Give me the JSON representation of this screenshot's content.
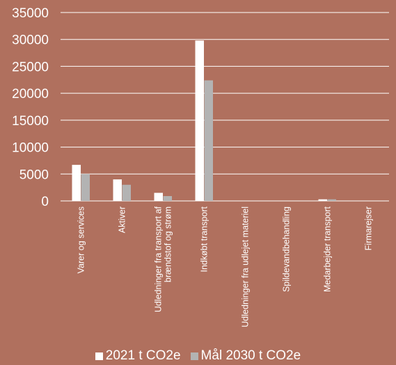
{
  "chart_data": {
    "type": "bar",
    "categories": [
      "Varer og services",
      "Aktiver",
      "Udledninger fra transport af brændstof og strøm",
      "Indkøbt transport",
      "Udledninger fra udlejet materiel",
      "Spildevandbehandling",
      "Medarbejder transport",
      "Firmarejser"
    ],
    "category_lines": [
      [
        "Varer og services"
      ],
      [
        "Aktiver"
      ],
      [
        "Udledninger fra transport af",
        "brændstof og strøm"
      ],
      [
        "Indkøbt transport"
      ],
      [
        "Udledninger fra udlejet materiel"
      ],
      [
        "Spildevandbehandling"
      ],
      [
        "Medarbejder transport"
      ],
      [
        "Firmarejser"
      ]
    ],
    "series": [
      {
        "name": "2021 t CO2e",
        "color": "#ffffff",
        "values": [
          6700,
          4000,
          1500,
          29800,
          0,
          0,
          300,
          0
        ]
      },
      {
        "name": "Mål 2030 t CO2e",
        "color": "#b3b3b3",
        "values": [
          5000,
          3000,
          900,
          22400,
          0,
          0,
          300,
          0
        ]
      }
    ],
    "ylim": [
      0,
      35000
    ],
    "yticks": [
      "0",
      "5000",
      "10000",
      "15000",
      "20000",
      "25000",
      "30000",
      "35000"
    ],
    "grid": true,
    "legend_position": "bottom",
    "title": "",
    "xlabel": "",
    "ylabel": ""
  }
}
